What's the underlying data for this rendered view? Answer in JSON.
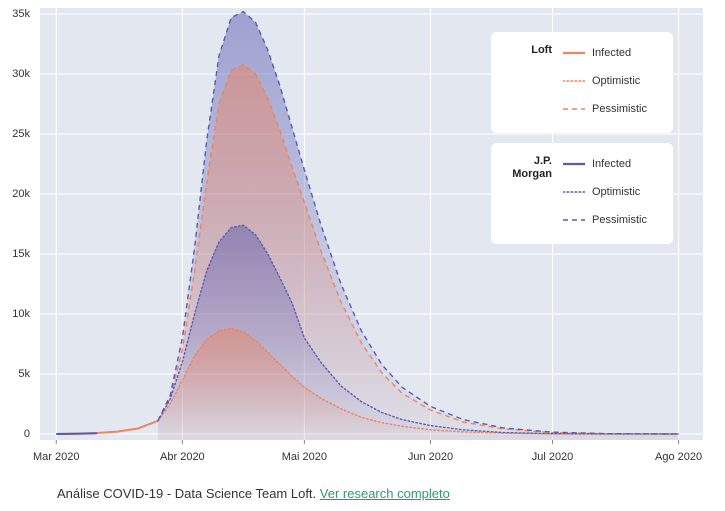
{
  "chart_data": {
    "type": "line",
    "x": [
      0,
      5,
      10,
      15,
      20,
      25,
      28,
      31,
      34,
      37,
      40,
      43,
      46,
      49,
      52,
      55,
      58,
      61,
      65,
      70,
      75,
      80,
      85,
      92,
      100,
      110,
      122,
      135,
      153
    ],
    "xlim": [
      -4,
      159
    ],
    "xticks": [
      {
        "value": 0,
        "label": "Mar 2020"
      },
      {
        "value": 31,
        "label": "Abr 2020"
      },
      {
        "value": 61,
        "label": "Mai 2020"
      },
      {
        "value": 92,
        "label": "Jun 2020"
      },
      {
        "value": 122,
        "label": "Jul 2020"
      },
      {
        "value": 153,
        "label": "Ago 2020"
      }
    ],
    "ylim": [
      -500,
      35500
    ],
    "yticks": [
      0,
      {
        "value": 5000,
        "label": "5k"
      },
      {
        "value": 10000,
        "label": "10k"
      },
      {
        "value": 15000,
        "label": "15k"
      },
      {
        "value": 20000,
        "label": "20k"
      },
      {
        "value": 25000,
        "label": "25k"
      },
      {
        "value": 30000,
        "label": "30k"
      },
      {
        "value": 35000,
        "label": "35k"
      }
    ],
    "grid": true,
    "series_groups": [
      {
        "name": "Loft",
        "series": [
          {
            "name": "Infected",
            "color": "#f0845c",
            "style": "solid",
            "values": [
              0,
              30,
              80,
              200,
              450,
              1100,
              null,
              null,
              null,
              null,
              null,
              null,
              null,
              null,
              null,
              null,
              null,
              null,
              null,
              null,
              null,
              null,
              null,
              null,
              null,
              null,
              null,
              null,
              null
            ]
          },
          {
            "name": "Optimistic",
            "color": "#f0845c",
            "style": "dotted",
            "values": [
              null,
              null,
              null,
              null,
              null,
              1100,
              2500,
              4500,
              6500,
              7900,
              8600,
              8800,
              8500,
              7800,
              6800,
              5800,
              4800,
              3900,
              3000,
              2100,
              1400,
              950,
              650,
              350,
              180,
              70,
              20,
              5,
              0
            ]
          },
          {
            "name": "Pessimistic",
            "color": "#f0845c",
            "style": "dashed",
            "values": [
              null,
              null,
              null,
              null,
              null,
              1100,
              3000,
              7000,
              13500,
              21000,
              27500,
              30300,
              30800,
              30000,
              28000,
              25300,
              22200,
              19300,
              15300,
              11000,
              7600,
              5100,
              3400,
              2000,
              1000,
              420,
              120,
              25,
              0
            ]
          }
        ]
      },
      {
        "name": "J.P. Morgan",
        "series": [
          {
            "name": "Infected",
            "color": "#5a5ab0",
            "style": "solid",
            "values": [
              0,
              20,
              60,
              null,
              null,
              null,
              null,
              null,
              null,
              null,
              null,
              null,
              null,
              null,
              null,
              null,
              null,
              null,
              null,
              null,
              null,
              null,
              null,
              null,
              null,
              null,
              null,
              null,
              null
            ]
          },
          {
            "name": "Optimistic",
            "color": "#5a5ab0",
            "style": "dotted",
            "values": [
              null,
              null,
              null,
              null,
              null,
              1100,
              2900,
              6000,
              10000,
              13600,
              16000,
              17200,
              17400,
              16600,
              15000,
              13000,
              10900,
              8000,
              6000,
              4000,
              2700,
              1800,
              1200,
              700,
              350,
              120,
              30,
              5,
              0
            ]
          },
          {
            "name": "Pessimistic",
            "color": "#5a5ab0",
            "style": "dashed",
            "values": [
              null,
              null,
              null,
              null,
              null,
              1100,
              3200,
              8000,
              15500,
              24500,
              31500,
              34700,
              35200,
              34300,
              32000,
              29000,
              25500,
              22000,
              17500,
              12500,
              8600,
              5800,
              3900,
              2300,
              1200,
              500,
              150,
              30,
              0
            ]
          }
        ]
      }
    ]
  },
  "caption": {
    "text": "Análise COVID-19 - Data Science Team Loft.",
    "link": "Ver research completo"
  }
}
